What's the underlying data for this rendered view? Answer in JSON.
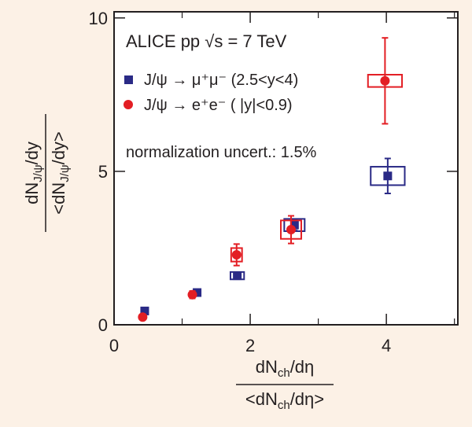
{
  "chart_data": {
    "type": "scatter",
    "title": "ALICE pp √s = 7 TeV",
    "note": "normalization uncert.: 1.5%",
    "xlim": [
      0,
      5.05
    ],
    "ylim": [
      0,
      10.2
    ],
    "xticks": [
      0,
      2,
      4
    ],
    "xtick_labels": [
      "0",
      "2",
      "4"
    ],
    "yticks": [
      0,
      5,
      10
    ],
    "ytick_labels": [
      "0",
      "5",
      "10"
    ],
    "xlabel": {
      "top_main": "dN",
      "top_sub": "ch",
      "top_rest": "/dη",
      "bottom_main": "<dN",
      "bottom_sub": "ch",
      "bottom_rest": "/dη>"
    },
    "ylabel": {
      "top_main": "dN",
      "top_sub": "J/ψ",
      "top_rest": "/dy",
      "bottom_main": "<dN",
      "bottom_sub": "J/ψ",
      "bottom_rest": "/dy>"
    },
    "series": [
      {
        "name": "mumu",
        "legend_text": "J/ψ  → μ⁺μ⁻ (2.5<y<4)",
        "marker": "square",
        "color": "#2a2a86",
        "points": [
          {
            "x": 0.45,
            "y": 0.45,
            "yerr": 0.05,
            "sys_dx": 0.0,
            "sys_dy": 0.0
          },
          {
            "x": 1.22,
            "y": 1.05,
            "yerr": 0.06,
            "sys_dx": 0.0,
            "sys_dy": 0.0
          },
          {
            "x": 1.81,
            "y": 1.6,
            "yerr": 0.07,
            "sys_dx": 0.1,
            "sys_dy": 0.12
          },
          {
            "x": 2.65,
            "y": 3.25,
            "yerr": 0.18,
            "sys_dx": 0.15,
            "sys_dy": 0.2
          },
          {
            "x": 4.02,
            "y": 4.85,
            "yerr": 0.57,
            "sys_dx": 0.25,
            "sys_dy": 0.3
          }
        ]
      },
      {
        "name": "ee",
        "legend_text": "J/ψ  → e⁺e⁻ ( |y|<0.9)",
        "marker": "circle",
        "color": "#e31e24",
        "points": [
          {
            "x": 0.42,
            "y": 0.25,
            "yerr": 0.08,
            "sys_dx": 0.0,
            "sys_dy": 0.0
          },
          {
            "x": 1.15,
            "y": 0.98,
            "yerr": 0.12,
            "sys_dx": 0.0,
            "sys_dy": 0.0
          },
          {
            "x": 1.8,
            "y": 2.28,
            "yerr": 0.35,
            "sys_dx": 0.08,
            "sys_dy": 0.22
          },
          {
            "x": 2.6,
            "y": 3.1,
            "yerr": 0.45,
            "sys_dx": 0.15,
            "sys_dy": 0.3
          },
          {
            "x": 3.98,
            "y": 7.95,
            "yerr": 1.4,
            "sys_dx": 0.25,
            "sys_dy": 0.2
          }
        ]
      }
    ]
  }
}
